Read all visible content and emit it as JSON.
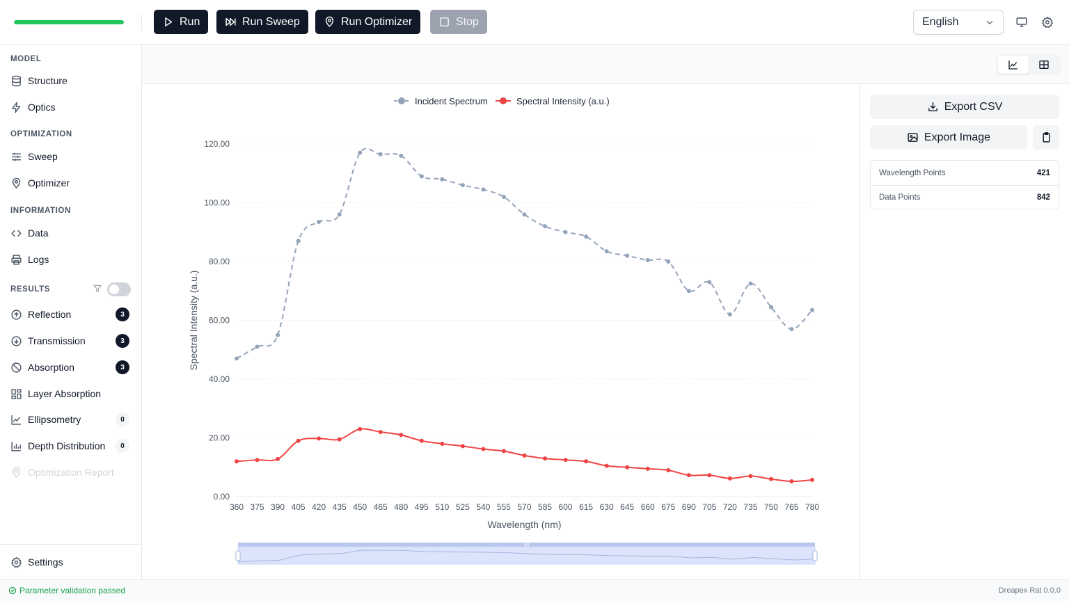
{
  "toolbar": {
    "progress_fraction": 1.0,
    "run_label": "Run",
    "run_sweep_label": "Run Sweep",
    "run_optimizer_label": "Run Optimizer",
    "stop_label": "Stop",
    "language": "English"
  },
  "sidebar": {
    "model_heading": "MODEL",
    "structure": "Structure",
    "optics": "Optics",
    "optimization_heading": "OPTIMIZATION",
    "sweep": "Sweep",
    "optimizer": "Optimizer",
    "information_heading": "INFORMATION",
    "data": "Data",
    "logs": "Logs",
    "results_heading": "RESULTS",
    "reflection": "Reflection",
    "reflection_count": "3",
    "transmission": "Transmission",
    "transmission_count": "3",
    "absorption": "Absorption",
    "absorption_count": "3",
    "layer_absorption": "Layer Absorption",
    "ellipsometry": "Ellipsometry",
    "ellipsometry_count": "0",
    "depth_distribution": "Depth Distribution",
    "depth_distribution_count": "0",
    "optimization_report": "Optimization Report",
    "settings": "Settings"
  },
  "right_panel": {
    "export_csv": "Export CSV",
    "export_image": "Export Image",
    "wavelength_points_label": "Wavelength Points",
    "wavelength_points_value": "421",
    "data_points_label": "Data Points",
    "data_points_value": "842"
  },
  "status": {
    "message": "Parameter validation passed",
    "version": "Dreapex Rat 0.0.0"
  },
  "colors": {
    "incident": "#94a3b8",
    "intensity": "#ef4444",
    "zoom_fill": "#dbe4fb",
    "zoom_handle": "#b9c6ee"
  },
  "chart_data": {
    "type": "line",
    "xlabel": "Wavelength (nm)",
    "ylabel": "Spectral Intensity (a.u.)",
    "ylim": [
      0,
      120
    ],
    "yticks": [
      "0.00",
      "20.00",
      "40.00",
      "60.00",
      "80.00",
      "100.00",
      "120.00"
    ],
    "xlim": [
      360,
      780
    ],
    "xticks": [
      "360",
      "375",
      "390",
      "405",
      "420",
      "435",
      "450",
      "465",
      "480",
      "495",
      "510",
      "525",
      "540",
      "555",
      "570",
      "585",
      "600",
      "615",
      "630",
      "645",
      "660",
      "675",
      "690",
      "705",
      "720",
      "735",
      "750",
      "765",
      "780"
    ],
    "legend_position": "top-center",
    "series": [
      {
        "name": "Incident Spectrum",
        "style": "dashed",
        "x": [
          360,
          375,
          390,
          405,
          420,
          435,
          450,
          465,
          480,
          495,
          510,
          525,
          540,
          555,
          570,
          585,
          600,
          615,
          630,
          645,
          660,
          675,
          690,
          705,
          720,
          735,
          750,
          765,
          780
        ],
        "values": [
          47,
          51,
          55,
          87,
          93.5,
          96,
          117,
          116.5,
          116,
          109,
          108,
          106,
          104.5,
          102,
          96,
          92,
          90,
          88.5,
          83.5,
          82,
          80.5,
          80,
          70,
          73,
          62,
          72.5,
          64.5,
          57,
          63.5
        ]
      },
      {
        "name": "Spectral Intensity (a.u.)",
        "style": "solid",
        "x": [
          360,
          375,
          390,
          405,
          420,
          435,
          450,
          465,
          480,
          495,
          510,
          525,
          540,
          555,
          570,
          585,
          600,
          615,
          630,
          645,
          660,
          675,
          690,
          705,
          720,
          735,
          750,
          765,
          780
        ],
        "values": [
          12,
          12.5,
          12.8,
          19,
          19.8,
          19.5,
          23,
          22,
          21,
          19,
          18,
          17.2,
          16.2,
          15.5,
          14,
          13,
          12.5,
          12,
          10.5,
          10,
          9.5,
          9,
          7.3,
          7.3,
          6.2,
          7,
          6,
          5.2,
          5.7
        ]
      }
    ]
  }
}
